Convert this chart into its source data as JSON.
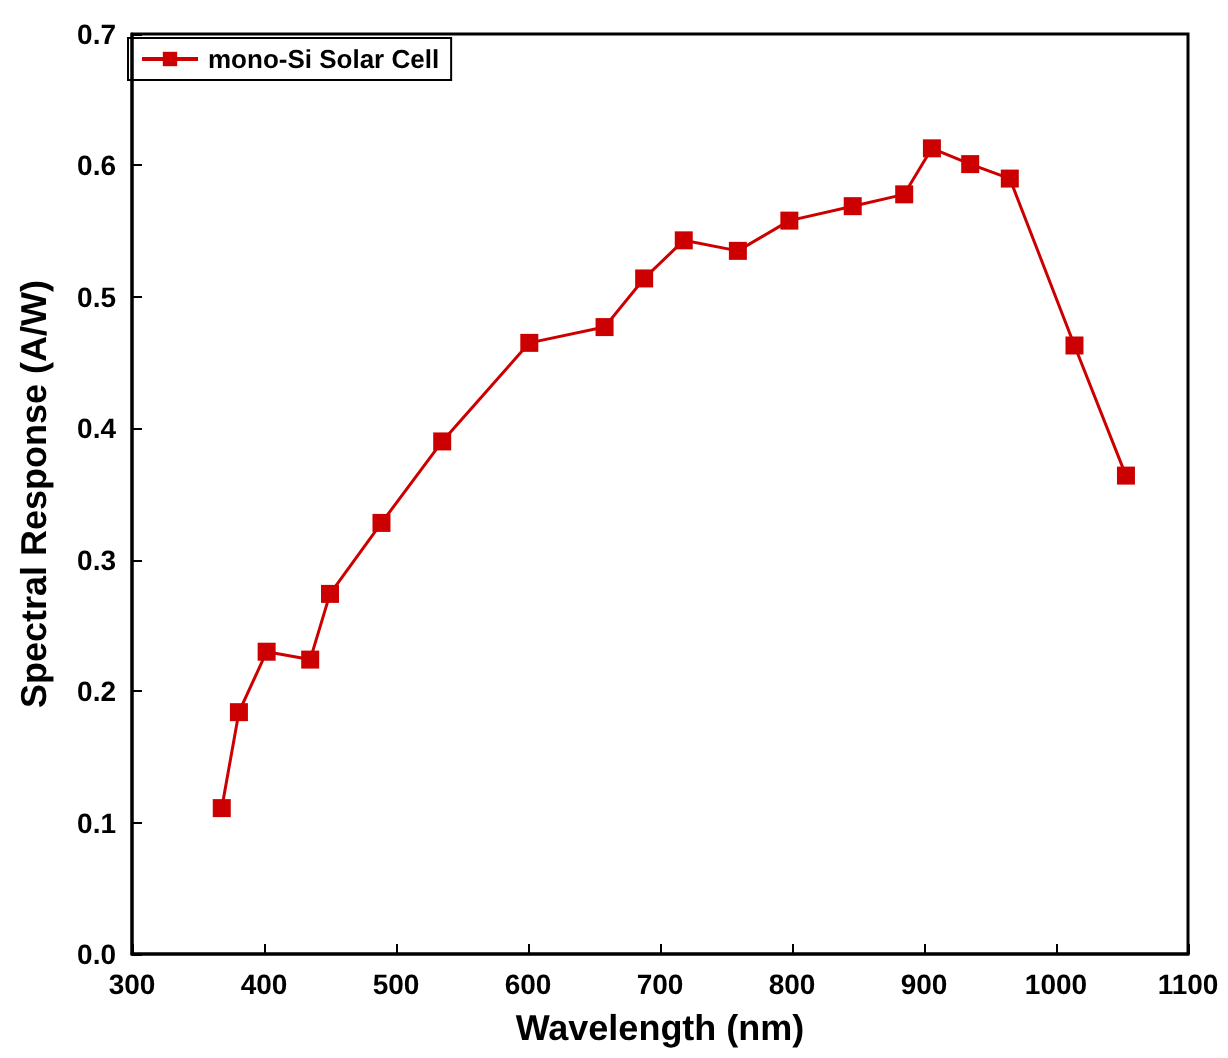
{
  "chart_data": {
    "type": "line",
    "xlabel": "Wavelength (nm)",
    "ylabel": "Spectral Response (A/W)",
    "xlim": [
      300,
      1100
    ],
    "xticks": [
      300,
      400,
      500,
      600,
      700,
      800,
      900,
      1000,
      1100
    ],
    "ylim": [
      0,
      0.7
    ],
    "yticks": [
      {
        "value": 0,
        "label": "0.0"
      },
      0.1,
      0.2,
      0.3,
      0.4,
      0.5,
      0.6,
      0.7
    ],
    "grid": false,
    "legend": "top left",
    "marker": "square",
    "line_style": "solid",
    "series": [
      {
        "name": "mono-Si Solar Cell",
        "color": "#cc0000",
        "x": [
          368,
          381,
          402,
          435,
          450,
          489,
          535,
          601,
          658,
          688,
          718,
          759,
          798,
          846,
          885,
          906,
          935,
          965,
          1014,
          1053
        ],
        "values": [
          0.111,
          0.184,
          0.23,
          0.224,
          0.274,
          0.328,
          0.39,
          0.465,
          0.477,
          0.514,
          0.543,
          0.535,
          0.558,
          0.569,
          0.578,
          0.613,
          0.601,
          0.59,
          0.463,
          0.364
        ]
      }
    ]
  }
}
